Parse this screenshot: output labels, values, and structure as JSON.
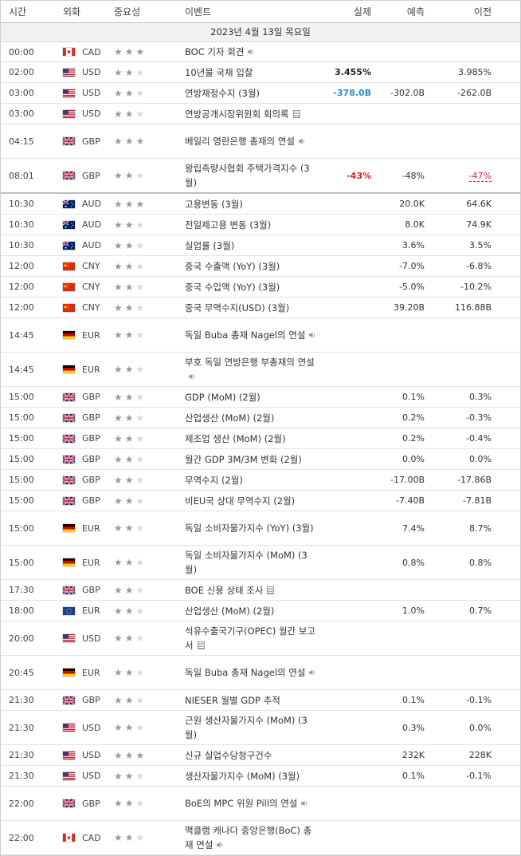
{
  "header": {
    "time": "시간",
    "currency": "외화",
    "importance": "중요성",
    "event": "이벤트",
    "actual": "실제",
    "forecast": "예측",
    "previous": "이전"
  },
  "date_label": "2023년 4월 13일 목요일",
  "rows": [
    {
      "time": "00:00",
      "flag": "CA",
      "cur": "CAD",
      "stars": 3,
      "event": "BOC 기자 회견",
      "icon": "speaker",
      "actual": "",
      "forecast": "",
      "previous": "",
      "h": 25
    },
    {
      "time": "02:00",
      "flag": "US",
      "cur": "USD",
      "stars": 2,
      "event": "10년물 국채 입찰",
      "icon": "",
      "actual": "3.455%",
      "actual_style": "neutral",
      "forecast": "",
      "previous": "3.985%",
      "h": 26
    },
    {
      "time": "03:00",
      "flag": "US",
      "cur": "USD",
      "stars": 2,
      "event": "연방재정수지 (3월)",
      "icon": "",
      "actual": "-378.0B",
      "actual_style": "pos",
      "forecast": "-302.0B",
      "previous": "-262.0B",
      "h": 26
    },
    {
      "time": "03:00",
      "flag": "US",
      "cur": "USD",
      "stars": 2,
      "event": "연방공개시장위원회 회의록",
      "icon": "doc",
      "actual": "",
      "forecast": "",
      "previous": "",
      "h": 26
    },
    {
      "time": "04:15",
      "flag": "GB",
      "cur": "GBP",
      "stars": 3,
      "event": "베일리 영란은행 총재의 연설",
      "icon": "speaker",
      "actual": "",
      "forecast": "",
      "previous": "",
      "h": 43
    },
    {
      "time": "08:01",
      "flag": "GB",
      "cur": "GBP",
      "stars": 2,
      "event": "왕립측량사협회 주택가격지수 (3월)",
      "icon": "",
      "actual": "-43%",
      "actual_style": "neg",
      "forecast": "-48%",
      "previous": "-47%",
      "previous_style": "rev",
      "h": 44,
      "sep": true
    },
    {
      "time": "10:30",
      "flag": "AU",
      "cur": "AUD",
      "stars": 3,
      "event": "고용변동 (3월)",
      "icon": "",
      "actual": "",
      "forecast": "20.0K",
      "previous": "64.6K",
      "h": 26
    },
    {
      "time": "10:30",
      "flag": "AU",
      "cur": "AUD",
      "stars": 2,
      "event": "전일제고용 변동 (3월)",
      "icon": "",
      "actual": "",
      "forecast": "8.0K",
      "previous": "74.9K",
      "h": 26
    },
    {
      "time": "10:30",
      "flag": "AU",
      "cur": "AUD",
      "stars": 2,
      "event": "실업률 (3월)",
      "icon": "",
      "actual": "",
      "forecast": "3.6%",
      "previous": "3.5%",
      "h": 26
    },
    {
      "time": "12:00",
      "flag": "CN",
      "cur": "CNY",
      "stars": 2,
      "event": "중국 수출액 (YoY) (3월)",
      "icon": "",
      "actual": "",
      "forecast": "-7.0%",
      "previous": "-6.8%",
      "h": 26
    },
    {
      "time": "12:00",
      "flag": "CN",
      "cur": "CNY",
      "stars": 2,
      "event": "중국 수입액 (YoY) (3월)",
      "icon": "",
      "actual": "",
      "forecast": "-5.0%",
      "previous": "-10.2%",
      "h": 26
    },
    {
      "time": "12:00",
      "flag": "CN",
      "cur": "CNY",
      "stars": 2,
      "event": "중국 무역수지(USD) (3월)",
      "icon": "",
      "actual": "",
      "forecast": "39.20B",
      "previous": "116.88B",
      "h": 26
    },
    {
      "time": "14:45",
      "flag": "DE",
      "cur": "EUR",
      "stars": 2,
      "event": "독일 Buba 총재 Nagel의 연설",
      "icon": "speaker",
      "actual": "",
      "forecast": "",
      "previous": "",
      "h": 43
    },
    {
      "time": "14:45",
      "flag": "DE",
      "cur": "EUR",
      "stars": 2,
      "event": "부호 독일 연방은행 부총재의 연설",
      "icon": "speaker",
      "actual": "",
      "forecast": "",
      "previous": "",
      "h": 43
    },
    {
      "time": "15:00",
      "flag": "GB",
      "cur": "GBP",
      "stars": 2,
      "event": "GDP (MoM) (2월)",
      "icon": "",
      "actual": "",
      "forecast": "0.1%",
      "previous": "0.3%",
      "h": 26
    },
    {
      "time": "15:00",
      "flag": "GB",
      "cur": "GBP",
      "stars": 2,
      "event": "산업생산 (MoM) (2월)",
      "icon": "",
      "actual": "",
      "forecast": "0.2%",
      "previous": "-0.3%",
      "h": 26
    },
    {
      "time": "15:00",
      "flag": "GB",
      "cur": "GBP",
      "stars": 2,
      "event": "제조업 생산 (MoM) (2월)",
      "icon": "",
      "actual": "",
      "forecast": "0.2%",
      "previous": "-0.4%",
      "h": 26
    },
    {
      "time": "15:00",
      "flag": "GB",
      "cur": "GBP",
      "stars": 2,
      "event": "월간 GDP 3M/3M 변화 (2월)",
      "icon": "",
      "actual": "",
      "forecast": "0.0%",
      "previous": "0.0%",
      "h": 26
    },
    {
      "time": "15:00",
      "flag": "GB",
      "cur": "GBP",
      "stars": 2,
      "event": "무역수지 (2월)",
      "icon": "",
      "actual": "",
      "forecast": "-17.00B",
      "previous": "-17.86B",
      "h": 26
    },
    {
      "time": "15:00",
      "flag": "GB",
      "cur": "GBP",
      "stars": 2,
      "event": "비EU국 상대 무역수지 (2월)",
      "icon": "",
      "actual": "",
      "forecast": "-7.40B",
      "previous": "-7.81B",
      "h": 26
    },
    {
      "time": "15:00",
      "flag": "DE",
      "cur": "EUR",
      "stars": 2,
      "event": "독일 소비자물가지수 (YoY) (3월)",
      "icon": "",
      "actual": "",
      "forecast": "7.4%",
      "previous": "8.7%",
      "h": 43
    },
    {
      "time": "15:00",
      "flag": "DE",
      "cur": "EUR",
      "stars": 2,
      "event": "독일 소비자물가지수 (MoM) (3월)",
      "icon": "",
      "actual": "",
      "forecast": "0.8%",
      "previous": "0.8%",
      "h": 43
    },
    {
      "time": "17:30",
      "flag": "GB",
      "cur": "GBP",
      "stars": 2,
      "event": "BOE 신용 상태 조사",
      "icon": "doc",
      "actual": "",
      "forecast": "",
      "previous": "",
      "h": 26
    },
    {
      "time": "18:00",
      "flag": "EU",
      "cur": "EUR",
      "stars": 2,
      "event": "산업생산 (MoM) (2월)",
      "icon": "",
      "actual": "",
      "forecast": "1.0%",
      "previous": "0.7%",
      "h": 26
    },
    {
      "time": "20:00",
      "flag": "US",
      "cur": "USD",
      "stars": 2,
      "event": "석유수출국기구(OPEC) 월간 보고서",
      "icon": "doc",
      "actual": "",
      "forecast": "",
      "previous": "",
      "h": 43
    },
    {
      "time": "20:45",
      "flag": "DE",
      "cur": "EUR",
      "stars": 2,
      "event": "독일 Buba 총재 Nagel의 연설",
      "icon": "speaker",
      "actual": "",
      "forecast": "",
      "previous": "",
      "h": 43
    },
    {
      "time": "21:30",
      "flag": "GB",
      "cur": "GBP",
      "stars": 2,
      "event": "NIESER 월별 GDP 추적",
      "icon": "",
      "actual": "",
      "forecast": "0.1%",
      "previous": "-0.1%",
      "h": 26
    },
    {
      "time": "21:30",
      "flag": "US",
      "cur": "USD",
      "stars": 2,
      "event": "근원 생산자물가지수 (MoM) (3월)",
      "icon": "",
      "actual": "",
      "forecast": "0.3%",
      "previous": "0.0%",
      "h": 43
    },
    {
      "time": "21:30",
      "flag": "US",
      "cur": "USD",
      "stars": 3,
      "event": "신규 실업수당청구건수",
      "icon": "",
      "actual": "",
      "forecast": "232K",
      "previous": "228K",
      "h": 26
    },
    {
      "time": "21:30",
      "flag": "US",
      "cur": "USD",
      "stars": 2,
      "event": "생산자물가지수 (MoM) (3월)",
      "icon": "",
      "actual": "",
      "forecast": "0.1%",
      "previous": "-0.1%",
      "h": 26
    },
    {
      "time": "22:00",
      "flag": "GB",
      "cur": "GBP",
      "stars": 2,
      "event": "BoE의 MPC 위원 Pill의 연설",
      "icon": "speaker",
      "actual": "",
      "forecast": "",
      "previous": "",
      "h": 43
    },
    {
      "time": "22:00",
      "flag": "CA",
      "cur": "CAD",
      "stars": 2,
      "event": "맥클램 캐나다 중앙은행(BoC) 총재 연설",
      "icon": "speaker",
      "actual": "",
      "forecast": "",
      "previous": "",
      "h": 43
    }
  ]
}
